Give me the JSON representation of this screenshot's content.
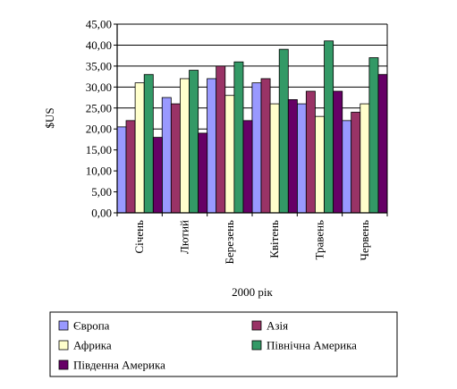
{
  "chart_data": {
    "type": "bar",
    "xlabel": "2000 рік",
    "ylabel": "$US",
    "ylim": [
      0,
      45
    ],
    "yticks": [
      "0,00",
      "5,00",
      "10,00",
      "15,00",
      "20,00",
      "25,00",
      "30,00",
      "35,00",
      "40,00",
      "45,00"
    ],
    "grid": "horizontal",
    "legend_position": "bottom",
    "categories": [
      "Січень",
      "Лютий",
      "Березень",
      "Квітень",
      "Травень",
      "Червень"
    ],
    "series": [
      {
        "name": "Європа",
        "color": "#9999ff",
        "values": [
          20.5,
          27.5,
          32,
          31,
          26,
          22
        ]
      },
      {
        "name": "Азія",
        "color": "#993366",
        "values": [
          22,
          26,
          35,
          32,
          29,
          24
        ]
      },
      {
        "name": "Африка",
        "color": "#ffffcc",
        "values": [
          31,
          32,
          28,
          26,
          23,
          26
        ]
      },
      {
        "name": "Північна Америка",
        "color": "#339966",
        "values": [
          33,
          34,
          36,
          39,
          41,
          37
        ]
      },
      {
        "name": "Південна Америка",
        "color": "#660066",
        "values": [
          18,
          19,
          22,
          27,
          29,
          33
        ]
      }
    ]
  }
}
